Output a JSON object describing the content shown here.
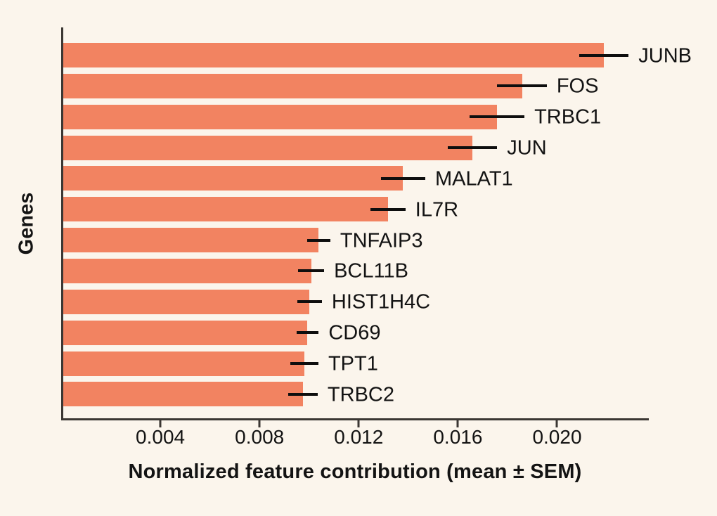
{
  "figure": {
    "background_color": "#FBF5EC",
    "bar_color": "#F28361",
    "axis_color": "#3B3733",
    "error_bar_color": "#0E0E0E",
    "text_color": "#131313"
  },
  "chart_data": {
    "type": "bar",
    "orientation": "horizontal",
    "title": "",
    "xlabel": "Normalized feature contribution (mean ± SEM)",
    "ylabel": "Genes",
    "xlim": [
      0,
      0.0237
    ],
    "grid": false,
    "legend": null,
    "error_bars": "SEM, horizontal, no caps",
    "categories": [
      "JUNB",
      "FOS",
      "TRBC1",
      "JUN",
      "MALAT1",
      "IL7R",
      "TNFAIP3",
      "BCL11B",
      "HIST1H4C",
      "CD69",
      "TPT1",
      "TRBC2"
    ],
    "values": [
      0.0218,
      0.0185,
      0.0175,
      0.0165,
      0.0137,
      0.0131,
      0.0103,
      0.01,
      0.00993,
      0.00985,
      0.00973,
      0.00966
    ],
    "sem": [
      0.001,
      0.001,
      0.0011,
      0.001,
      0.0009,
      0.0007,
      0.00047,
      0.00052,
      0.0005,
      0.00045,
      0.00056,
      0.0006
    ],
    "xticks": [
      0.004,
      0.008,
      0.012,
      0.016,
      0.02
    ],
    "xtick_labels": [
      "0.004",
      "0.008",
      "0.012",
      "0.016",
      "0.020"
    ]
  }
}
